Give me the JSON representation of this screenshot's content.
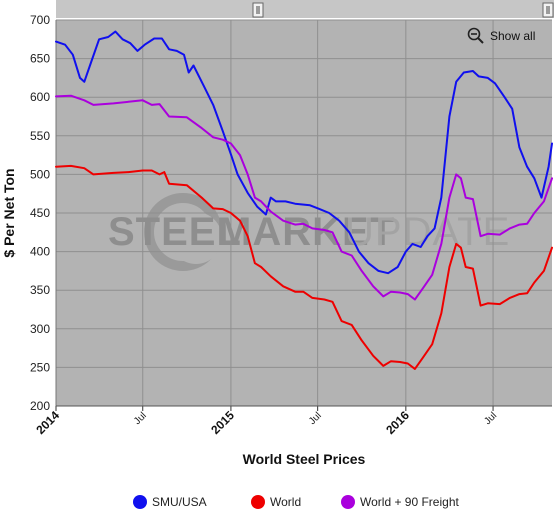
{
  "chart_data": {
    "type": "line",
    "title": "",
    "xlabel": "World Steel Prices",
    "ylabel": "$ Per Net Ton",
    "ylim": [
      200,
      700
    ],
    "yticks": [
      200,
      250,
      300,
      350,
      400,
      450,
      500,
      550,
      600,
      650,
      700
    ],
    "xlim": [
      "2014-01",
      "2016-11"
    ],
    "xticks": [
      {
        "t": "2014-01",
        "label": "2014",
        "bold": true
      },
      {
        "t": "2014-07",
        "label": "Jul",
        "bold": false
      },
      {
        "t": "2015-01",
        "label": "2015",
        "bold": true
      },
      {
        "t": "2015-07",
        "label": "Jul",
        "bold": false
      },
      {
        "t": "2016-01",
        "label": "2016",
        "bold": true
      },
      {
        "t": "2016-07",
        "label": "Jul",
        "bold": false
      }
    ],
    "grid": true,
    "background": "#b3b3b3",
    "legend": {
      "position": "bottom"
    },
    "watermark": {
      "word1": "STEEL",
      "word2": "MARKET",
      "word3": "UPDATE"
    },
    "series": [
      {
        "name": "SMU/USA",
        "color": "#1010ee",
        "points": [
          [
            "2014-01-01",
            672
          ],
          [
            "2014-01-20",
            668
          ],
          [
            "2014-02-05",
            655
          ],
          [
            "2014-02-20",
            625
          ],
          [
            "2014-03-01",
            620
          ],
          [
            "2014-03-15",
            645
          ],
          [
            "2014-04-01",
            675
          ],
          [
            "2014-04-20",
            678
          ],
          [
            "2014-05-05",
            685
          ],
          [
            "2014-05-20",
            675
          ],
          [
            "2014-06-05",
            670
          ],
          [
            "2014-06-20",
            660
          ],
          [
            "2014-07-05",
            668
          ],
          [
            "2014-07-25",
            676
          ],
          [
            "2014-08-10",
            676
          ],
          [
            "2014-08-25",
            662
          ],
          [
            "2014-09-10",
            660
          ],
          [
            "2014-09-25",
            655
          ],
          [
            "2014-10-05",
            632
          ],
          [
            "2014-10-15",
            641
          ],
          [
            "2014-11-05",
            615
          ],
          [
            "2014-11-25",
            590
          ],
          [
            "2014-12-15",
            556
          ],
          [
            "2015-01-01",
            526
          ],
          [
            "2015-01-15",
            500
          ],
          [
            "2015-02-05",
            476
          ],
          [
            "2015-02-25",
            458
          ],
          [
            "2015-03-15",
            448
          ],
          [
            "2015-03-25",
            470
          ],
          [
            "2015-04-05",
            465
          ],
          [
            "2015-04-25",
            465
          ],
          [
            "2015-05-15",
            462
          ],
          [
            "2015-06-15",
            460
          ],
          [
            "2015-07-05",
            455
          ],
          [
            "2015-07-25",
            450
          ],
          [
            "2015-08-15",
            440
          ],
          [
            "2015-09-05",
            425
          ],
          [
            "2015-09-25",
            400
          ],
          [
            "2015-10-15",
            385
          ],
          [
            "2015-11-05",
            375
          ],
          [
            "2015-11-25",
            372
          ],
          [
            "2015-12-15",
            380
          ],
          [
            "2016-01-01",
            400
          ],
          [
            "2016-01-15",
            410
          ],
          [
            "2016-02-01",
            406
          ],
          [
            "2016-02-15",
            420
          ],
          [
            "2016-03-01",
            430
          ],
          [
            "2016-03-15",
            470
          ],
          [
            "2016-04-01",
            575
          ],
          [
            "2016-04-15",
            620
          ],
          [
            "2016-05-01",
            632
          ],
          [
            "2016-05-20",
            634
          ],
          [
            "2016-06-01",
            627
          ],
          [
            "2016-06-20",
            625
          ],
          [
            "2016-07-05",
            618
          ],
          [
            "2016-07-25",
            600
          ],
          [
            "2016-08-10",
            585
          ],
          [
            "2016-08-25",
            535
          ],
          [
            "2016-09-10",
            510
          ],
          [
            "2016-09-25",
            495
          ],
          [
            "2016-10-10",
            470
          ],
          [
            "2016-10-25",
            510
          ],
          [
            "2016-11-01",
            540
          ]
        ]
      },
      {
        "name": "World",
        "color": "#ee0000",
        "points": [
          [
            "2014-01-01",
            510
          ],
          [
            "2014-02-01",
            511
          ],
          [
            "2014-03-01",
            508
          ],
          [
            "2014-03-20",
            500
          ],
          [
            "2014-05-01",
            502
          ],
          [
            "2014-06-01",
            503
          ],
          [
            "2014-07-01",
            505
          ],
          [
            "2014-07-20",
            505
          ],
          [
            "2014-08-05",
            500
          ],
          [
            "2014-08-15",
            503
          ],
          [
            "2014-08-25",
            488
          ],
          [
            "2014-10-01",
            486
          ],
          [
            "2014-11-01",
            470
          ],
          [
            "2014-11-25",
            456
          ],
          [
            "2014-12-15",
            455
          ],
          [
            "2015-01-01",
            450
          ],
          [
            "2015-01-20",
            440
          ],
          [
            "2015-02-05",
            420
          ],
          [
            "2015-02-20",
            385
          ],
          [
            "2015-03-05",
            380
          ],
          [
            "2015-03-25",
            368
          ],
          [
            "2015-04-20",
            355
          ],
          [
            "2015-05-15",
            348
          ],
          [
            "2015-06-01",
            348
          ],
          [
            "2015-06-20",
            340
          ],
          [
            "2015-07-15",
            338
          ],
          [
            "2015-08-01",
            335
          ],
          [
            "2015-08-20",
            310
          ],
          [
            "2015-09-10",
            305
          ],
          [
            "2015-10-01",
            285
          ],
          [
            "2015-10-25",
            265
          ],
          [
            "2015-11-15",
            252
          ],
          [
            "2015-12-01",
            258
          ],
          [
            "2015-12-20",
            257
          ],
          [
            "2016-01-05",
            255
          ],
          [
            "2016-01-20",
            248
          ],
          [
            "2016-02-05",
            262
          ],
          [
            "2016-02-25",
            280
          ],
          [
            "2016-03-15",
            320
          ],
          [
            "2016-04-01",
            380
          ],
          [
            "2016-04-15",
            410
          ],
          [
            "2016-04-25",
            405
          ],
          [
            "2016-05-05",
            380
          ],
          [
            "2016-05-20",
            378
          ],
          [
            "2016-06-05",
            330
          ],
          [
            "2016-06-20",
            333
          ],
          [
            "2016-07-15",
            332
          ],
          [
            "2016-08-05",
            340
          ],
          [
            "2016-08-25",
            345
          ],
          [
            "2016-09-10",
            346
          ],
          [
            "2016-09-25",
            360
          ],
          [
            "2016-10-15",
            375
          ],
          [
            "2016-11-01",
            405
          ]
        ]
      },
      {
        "name": "World + 90 Freight",
        "color": "#aa00dd",
        "points": [
          [
            "2014-01-01",
            601
          ],
          [
            "2014-02-01",
            602
          ],
          [
            "2014-03-01",
            596
          ],
          [
            "2014-03-20",
            590
          ],
          [
            "2014-05-01",
            592
          ],
          [
            "2014-06-01",
            594
          ],
          [
            "2014-07-01",
            596
          ],
          [
            "2014-07-20",
            590
          ],
          [
            "2014-08-05",
            591
          ],
          [
            "2014-08-25",
            575
          ],
          [
            "2014-10-01",
            574
          ],
          [
            "2014-11-01",
            560
          ],
          [
            "2014-11-25",
            548
          ],
          [
            "2014-12-15",
            545
          ],
          [
            "2015-01-01",
            540
          ],
          [
            "2015-01-20",
            525
          ],
          [
            "2015-02-05",
            500
          ],
          [
            "2015-02-20",
            470
          ],
          [
            "2015-03-05",
            465
          ],
          [
            "2015-03-25",
            452
          ],
          [
            "2015-04-20",
            440
          ],
          [
            "2015-05-15",
            435
          ],
          [
            "2015-06-01",
            436
          ],
          [
            "2015-06-20",
            430
          ],
          [
            "2015-07-15",
            428
          ],
          [
            "2015-08-01",
            425
          ],
          [
            "2015-08-20",
            400
          ],
          [
            "2015-09-10",
            395
          ],
          [
            "2015-10-01",
            375
          ],
          [
            "2015-10-25",
            355
          ],
          [
            "2015-11-15",
            342
          ],
          [
            "2015-12-01",
            348
          ],
          [
            "2015-12-20",
            347
          ],
          [
            "2016-01-05",
            345
          ],
          [
            "2016-01-20",
            338
          ],
          [
            "2016-02-05",
            352
          ],
          [
            "2016-02-25",
            370
          ],
          [
            "2016-03-15",
            410
          ],
          [
            "2016-04-01",
            470
          ],
          [
            "2016-04-15",
            500
          ],
          [
            "2016-04-25",
            495
          ],
          [
            "2016-05-05",
            470
          ],
          [
            "2016-05-20",
            468
          ],
          [
            "2016-06-05",
            420
          ],
          [
            "2016-06-20",
            423
          ],
          [
            "2016-07-15",
            422
          ],
          [
            "2016-08-05",
            430
          ],
          [
            "2016-08-25",
            435
          ],
          [
            "2016-09-10",
            436
          ],
          [
            "2016-09-25",
            450
          ],
          [
            "2016-10-15",
            465
          ],
          [
            "2016-11-01",
            495
          ]
        ]
      }
    ]
  },
  "controls": {
    "zoom_label": "Show all",
    "zoom_icon": "zoom-out-icon",
    "scroll_handle_icon": "grip-icon"
  }
}
